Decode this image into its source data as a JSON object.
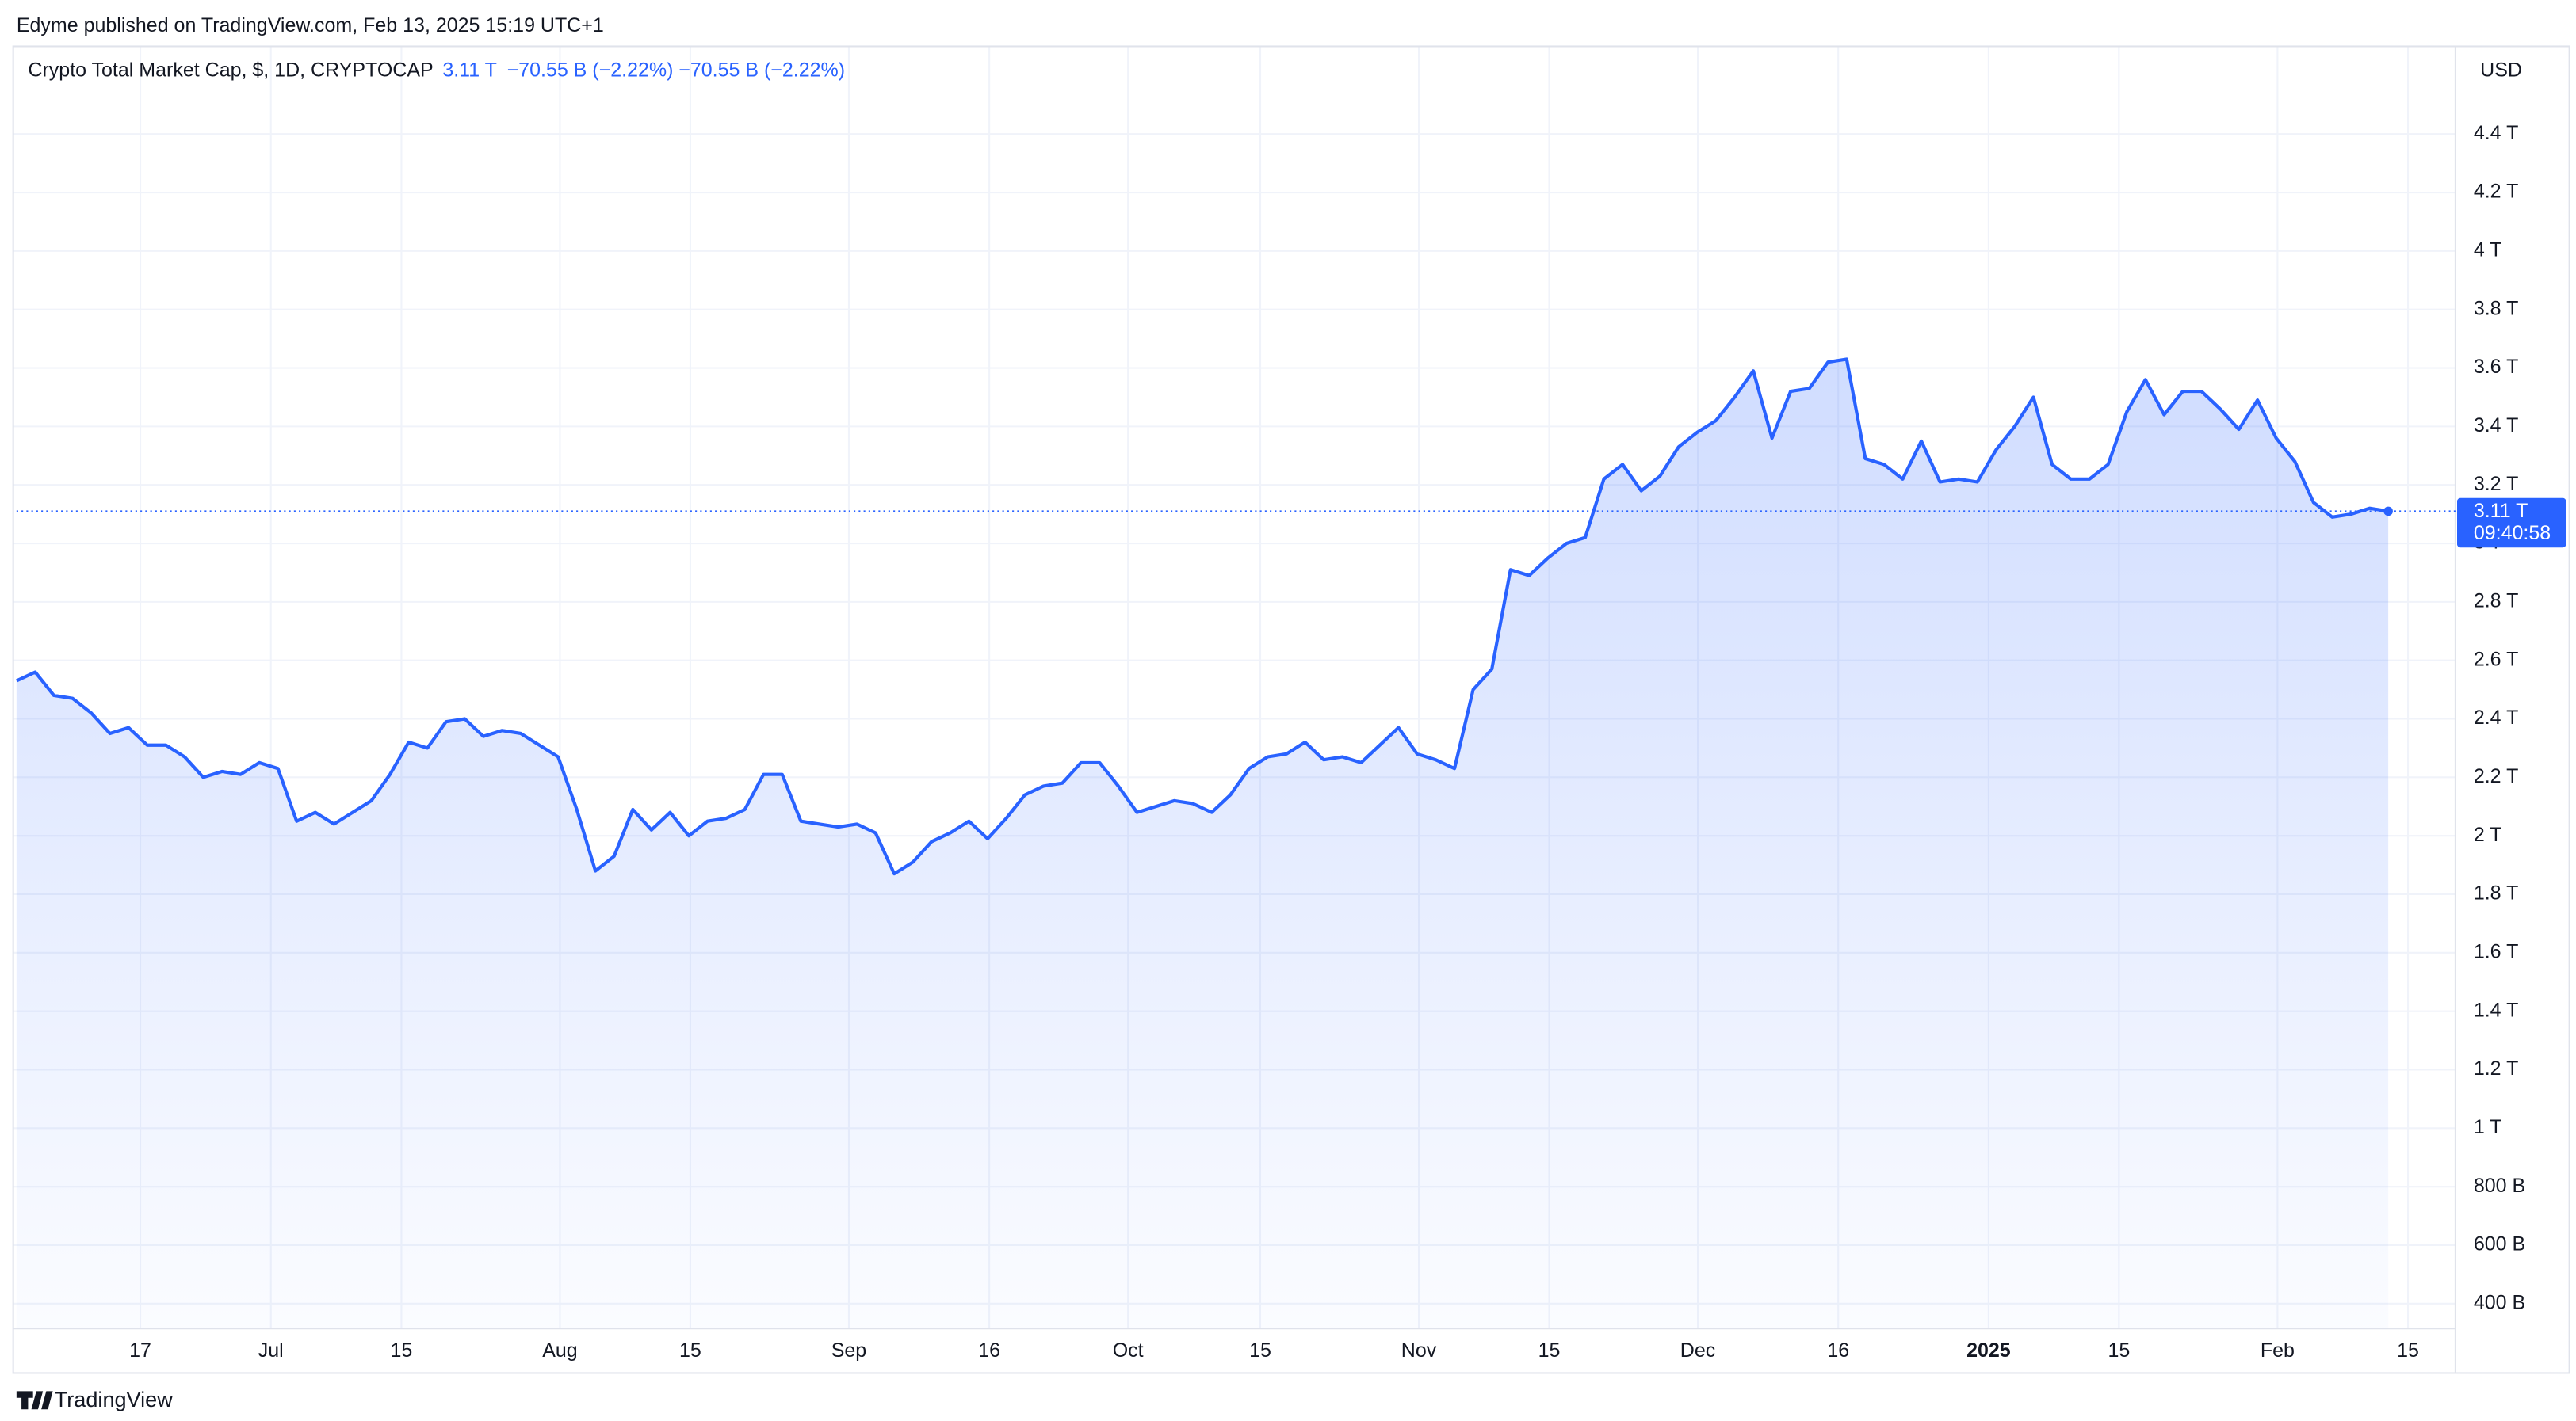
{
  "chart_data": {
    "type": "line",
    "published": "Edyme published on TradingView.com, Feb 13, 2025 15:19 UTC+1",
    "title": "Crypto Total Market Cap, $, 1D, CRYPTOCAP",
    "legend_values": [
      "3.11 T",
      "−70.55 B (−2.22%)",
      "−70.55 B (−2.22%)"
    ],
    "currency": "USD",
    "last_value_label": "3.11 T",
    "countdown": "09:40:58",
    "brand": "TradingView",
    "series": [
      {
        "name": "CRYPTOCAP",
        "color": "#2962ff",
        "values": [
          2.53,
          2.56,
          2.48,
          2.47,
          2.42,
          2.35,
          2.37,
          2.31,
          2.31,
          2.27,
          2.2,
          2.22,
          2.21,
          2.25,
          2.23,
          2.05,
          2.08,
          2.04,
          2.08,
          2.12,
          2.21,
          2.32,
          2.3,
          2.39,
          2.4,
          2.34,
          2.36,
          2.35,
          2.31,
          2.27,
          2.09,
          1.88,
          1.93,
          2.09,
          2.02,
          2.08,
          2.0,
          2.05,
          2.06,
          2.09,
          2.21,
          2.21,
          2.05,
          2.04,
          2.03,
          2.04,
          2.01,
          1.87,
          1.91,
          1.98,
          2.01,
          2.05,
          1.99,
          2.06,
          2.14,
          2.17,
          2.18,
          2.25,
          2.25,
          2.17,
          2.08,
          2.1,
          2.12,
          2.11,
          2.08,
          2.14,
          2.23,
          2.27,
          2.28,
          2.32,
          2.26,
          2.27,
          2.25,
          2.31,
          2.37,
          2.28,
          2.26,
          2.23,
          2.5,
          2.57,
          2.91,
          2.89,
          2.95,
          3.0,
          3.02,
          3.22,
          3.27,
          3.18,
          3.23,
          3.33,
          3.38,
          3.42,
          3.5,
          3.59,
          3.36,
          3.52,
          3.53,
          3.62,
          3.63,
          3.29,
          3.27,
          3.22,
          3.35,
          3.21,
          3.22,
          3.21,
          3.32,
          3.4,
          3.5,
          3.27,
          3.22,
          3.22,
          3.27,
          3.45,
          3.56,
          3.44,
          3.52,
          3.52,
          3.46,
          3.39,
          3.49,
          3.36,
          3.28,
          3.14,
          3.09,
          3.1,
          3.12,
          3.11
        ]
      }
    ],
    "xlim": [
      0,
      130.6
    ],
    "xticks": [
      {
        "value": 6.63,
        "label": "17"
      },
      {
        "value": 13.62,
        "label": "Jul"
      },
      {
        "value": 20.61,
        "label": "15"
      },
      {
        "value": 29.1,
        "label": "Aug"
      },
      {
        "value": 36.08,
        "label": "15"
      },
      {
        "value": 44.57,
        "label": "Sep"
      },
      {
        "value": 52.09,
        "label": "16"
      },
      {
        "value": 59.52,
        "label": "Oct"
      },
      {
        "value": 66.6,
        "label": "15"
      },
      {
        "value": 75.09,
        "label": "Nov"
      },
      {
        "value": 82.07,
        "label": "15"
      },
      {
        "value": 90.03,
        "label": "Dec"
      },
      {
        "value": 97.55,
        "label": "16"
      },
      {
        "value": 105.6,
        "label": "2025"
      },
      {
        "value": 112.58,
        "label": "15"
      },
      {
        "value": 121.07,
        "label": "Feb"
      },
      {
        "value": 128.06,
        "label": "15"
      }
    ],
    "ylim": [
      0.315,
      4.7
    ],
    "yticks": [
      {
        "value": 0.4,
        "label": "400 B"
      },
      {
        "value": 0.6,
        "label": "600 B"
      },
      {
        "value": 0.8,
        "label": "800 B"
      },
      {
        "value": 1,
        "label": "1 T"
      },
      {
        "value": 1.2,
        "label": "1.2 T"
      },
      {
        "value": 1.4,
        "label": "1.4 T"
      },
      {
        "value": 1.6,
        "label": "1.6 T"
      },
      {
        "value": 1.8,
        "label": "1.8 T"
      },
      {
        "value": 2,
        "label": "2 T"
      },
      {
        "value": 2.2,
        "label": "2.2 T"
      },
      {
        "value": 2.4,
        "label": "2.4 T"
      },
      {
        "value": 2.6,
        "label": "2.6 T"
      },
      {
        "value": 2.8,
        "label": "2.8 T"
      },
      {
        "value": 3,
        "label": "3 T"
      },
      {
        "value": 3.2,
        "label": "3.2 T"
      },
      {
        "value": 3.4,
        "label": "3.4 T"
      },
      {
        "value": 3.6,
        "label": "3.6 T"
      },
      {
        "value": 3.8,
        "label": "3.8 T"
      },
      {
        "value": 4,
        "label": "4 T"
      },
      {
        "value": 4.2,
        "label": "4.2 T"
      },
      {
        "value": 4.4,
        "label": "4.4 T"
      }
    ],
    "grid": true
  }
}
